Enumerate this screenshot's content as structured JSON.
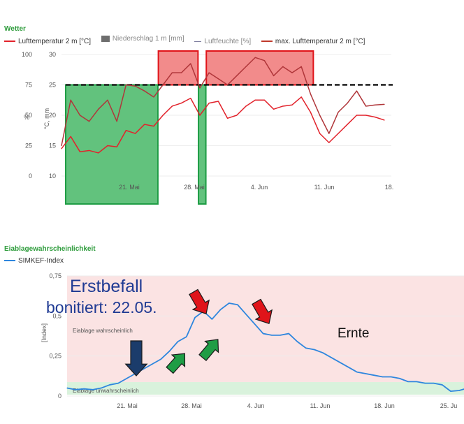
{
  "weather": {
    "title": "Wetter",
    "legend": [
      {
        "label": "Lufttemperatur 2 m [°C]",
        "color": "#e2222b",
        "kind": "line"
      },
      {
        "label": "Niederschlag 1 m [mm]",
        "color": "#6e6e6e",
        "kind": "box"
      },
      {
        "label": "Luftfeuchte [%]",
        "color": "#7f7f9f",
        "kind": "line"
      },
      {
        "label": "max. Lufttemperatur 2 m [°C]",
        "color": "#c0392b",
        "kind": "line"
      }
    ],
    "y_left_label": "%",
    "y_mid_label": "°C, mm"
  },
  "egg": {
    "title": "Eiablagewahrscheinlichkeit",
    "legend": [
      {
        "label": "SIMKEF-Index",
        "color": "#2e86de",
        "kind": "line"
      }
    ],
    "ylabel": "[Index]",
    "band_high_label": "Eiablage wahrscheinlich",
    "band_low_label": "Eiablage unwahrscheinlich"
  },
  "annotations": {
    "erstbefall_line1": "Erstbefall",
    "erstbefall_line2": "bonitiert: 22.05.",
    "ernte": "Ernte"
  },
  "colors": {
    "temp": "#e2222b",
    "max_temp": "#b0363a",
    "threshold": "#000000",
    "hot_fill": "#f28b8b",
    "hot_stroke": "#e0141a",
    "green_fill": "#62c27d",
    "green_stroke": "#1f9d45",
    "simkef": "#2e86de",
    "pink_band": "#fbe3e3",
    "green_band": "#d9f2dc",
    "arrow_red": "#e0141a",
    "arrow_green": "#1f9d45",
    "arrow_blue": "#1b3c6b",
    "annotation_text": "#1f3a93"
  },
  "chart_data": [
    {
      "type": "line",
      "title": "Wetter",
      "x_start": "2024-05-15",
      "xticks": [
        "21. Mai",
        "28. Mai",
        "4. Jun",
        "11. Jun",
        "18."
      ],
      "y_left_ticks": [
        "100",
        "75",
        "50",
        "25",
        "0"
      ],
      "y_right_ticks": [
        "30",
        "25",
        "20",
        "15",
        "10"
      ],
      "ylim_celsius": [
        10,
        30
      ],
      "threshold_celsius": 25,
      "series": [
        {
          "name": "Lufttemperatur 2 m [°C]",
          "x": [
            0,
            1,
            2,
            3,
            4,
            5,
            6,
            7,
            8,
            9,
            10,
            11,
            12,
            13,
            14,
            15,
            16,
            17,
            18,
            19,
            20,
            21,
            22,
            23,
            24,
            25,
            26,
            27,
            28,
            29,
            30,
            31,
            32,
            33,
            34,
            35
          ],
          "values": [
            14.5,
            16.5,
            14,
            14.2,
            13.8,
            15,
            14.8,
            17.5,
            17,
            18.5,
            18.2,
            20,
            21.5,
            22,
            22.8,
            20,
            22,
            22.3,
            19.5,
            20,
            21.5,
            22.5,
            22.5,
            21,
            21.5,
            21.7,
            23,
            20.5,
            17,
            15.5,
            17,
            18.5,
            20,
            20,
            19.7,
            19.2
          ]
        },
        {
          "name": "max. Lufttemperatur 2 m [°C]",
          "x": [
            0,
            1,
            2,
            3,
            4,
            5,
            6,
            7,
            8,
            9,
            10,
            11,
            12,
            13,
            14,
            15,
            16,
            17,
            18,
            19,
            20,
            21,
            22,
            23,
            24,
            25,
            26,
            27,
            28,
            29,
            30,
            31,
            32,
            33,
            34,
            35
          ],
          "values": [
            15,
            22.5,
            20,
            19,
            21,
            22.5,
            19,
            25,
            24.8,
            24,
            23,
            25,
            27,
            27,
            28.5,
            24.5,
            27,
            26,
            25,
            26.5,
            28,
            29.5,
            29,
            26.5,
            28,
            27,
            28,
            23.5,
            20,
            17,
            20.5,
            22,
            24,
            21.5,
            21.7,
            21.8
          ]
        }
      ]
    },
    {
      "type": "line",
      "title": "Eiablagewahrscheinlichkeit",
      "xticks": [
        "21. Mai",
        "28. Mai",
        "4. Jun",
        "11. Jun",
        "18. Jun",
        "25. Ju"
      ],
      "yticks": [
        "0,75",
        "0,5",
        "0,25",
        "0"
      ],
      "ylim": [
        0,
        0.75
      ],
      "series": [
        {
          "name": "SIMKEF-Index",
          "x": [
            0,
            1,
            2,
            3,
            4,
            5,
            6,
            7,
            8,
            9,
            10,
            11,
            12,
            13,
            14,
            15,
            16,
            17,
            18,
            19,
            20,
            21,
            22,
            23,
            24,
            25,
            26,
            27,
            28,
            29,
            30,
            31,
            32,
            33,
            34,
            35,
            36,
            37,
            38,
            39,
            40,
            41,
            42,
            43,
            44,
            45,
            46,
            47
          ],
          "values": [
            0.05,
            0.04,
            0.045,
            0.04,
            0.05,
            0.07,
            0.08,
            0.11,
            0.14,
            0.17,
            0.2,
            0.23,
            0.28,
            0.34,
            0.37,
            0.49,
            0.53,
            0.48,
            0.54,
            0.58,
            0.57,
            0.51,
            0.45,
            0.39,
            0.38,
            0.38,
            0.39,
            0.34,
            0.3,
            0.29,
            0.27,
            0.24,
            0.21,
            0.18,
            0.15,
            0.14,
            0.13,
            0.12,
            0.12,
            0.11,
            0.09,
            0.09,
            0.08,
            0.08,
            0.07,
            0.03,
            0.035,
            0.05
          ]
        }
      ]
    }
  ]
}
